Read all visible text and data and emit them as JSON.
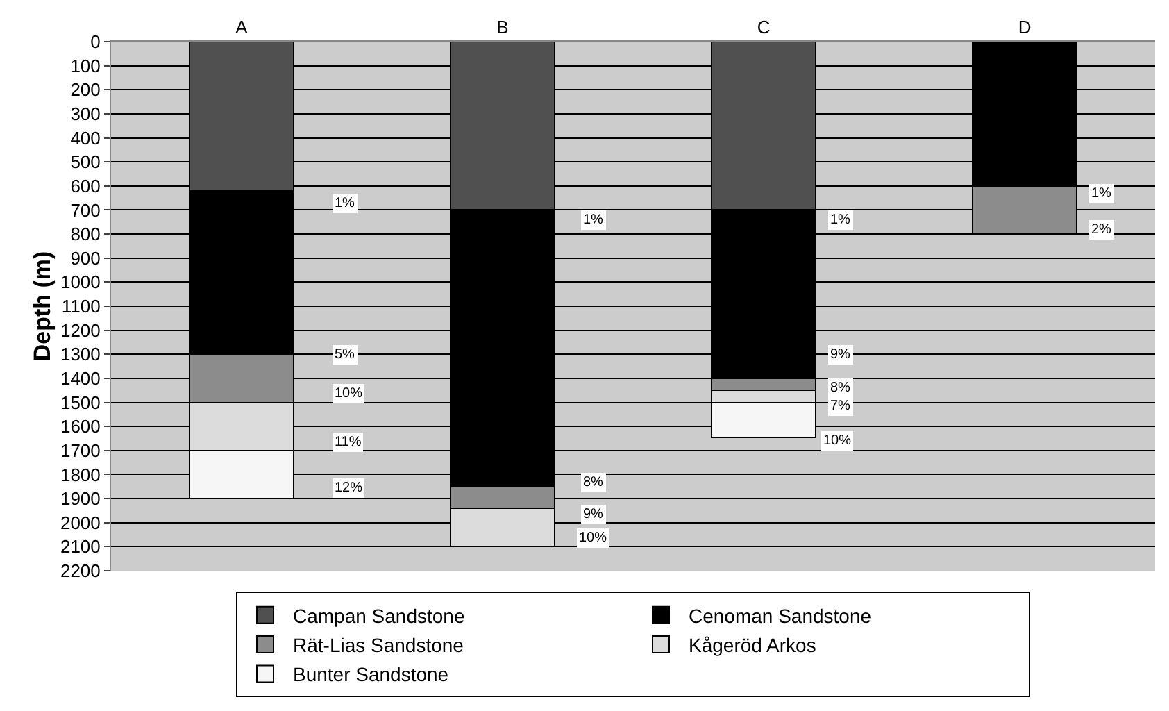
{
  "chart_data": {
    "type": "bar",
    "stacked": true,
    "ylabel": "Depth (m)",
    "categories": [
      "A",
      "B",
      "C",
      "D"
    ],
    "series": [
      {
        "name": "Campan Sandstone",
        "color": "#505050",
        "values": [
          620,
          700,
          700,
          null
        ]
      },
      {
        "name": "Cenoman Sandstone",
        "color": "#000000",
        "values": [
          680,
          1150,
          700,
          600
        ]
      },
      {
        "name": "Rät-Lias Sandstone",
        "color": "#8c8c8c",
        "values": [
          200,
          90,
          50,
          200
        ]
      },
      {
        "name": "Kågeröd Arkos",
        "color": "#dcdcdc",
        "values": [
          200,
          160,
          50,
          null
        ]
      },
      {
        "name": "Bunter Sandstone",
        "color": "#f6f6f6",
        "values": [
          200,
          null,
          145,
          null
        ]
      }
    ],
    "ylim": [
      2200,
      0
    ],
    "yticks": [
      0,
      100,
      200,
      300,
      400,
      500,
      600,
      700,
      800,
      900,
      1000,
      1100,
      1200,
      1300,
      1400,
      1500,
      1600,
      1700,
      1800,
      1900,
      2000,
      2100,
      2200
    ],
    "grid": "y",
    "legend": "bottom",
    "annotations": [
      "1%",
      "5%",
      "10%",
      "11%",
      "12%",
      "1%",
      "8%",
      "9%",
      "10%",
      "1%",
      "9%",
      "8%",
      "7%",
      "10%",
      "1%",
      "2%"
    ]
  }
}
